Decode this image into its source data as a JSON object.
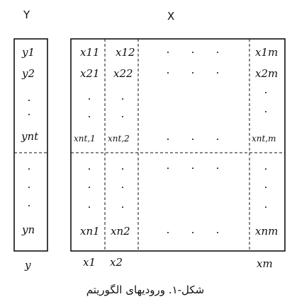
{
  "header": {
    "left": "Y",
    "right": "X"
  },
  "y_vector": [
    "y1",
    "y2",
    "ynt",
    "yn"
  ],
  "y_bottom_label": "y",
  "matrix": {
    "row1": [
      "x11",
      "x12",
      "x1m"
    ],
    "row2": [
      "x21",
      "x22",
      "x2m"
    ],
    "row_nt": [
      "xnt,1",
      "xnt,2",
      "xnt,m"
    ],
    "row_n": [
      "xn1",
      "xn2",
      "xnm"
    ]
  },
  "column_labels": [
    "x1",
    "x2",
    "xm"
  ],
  "caption": "شکل-۱. ورودیهای الگوریتم"
}
